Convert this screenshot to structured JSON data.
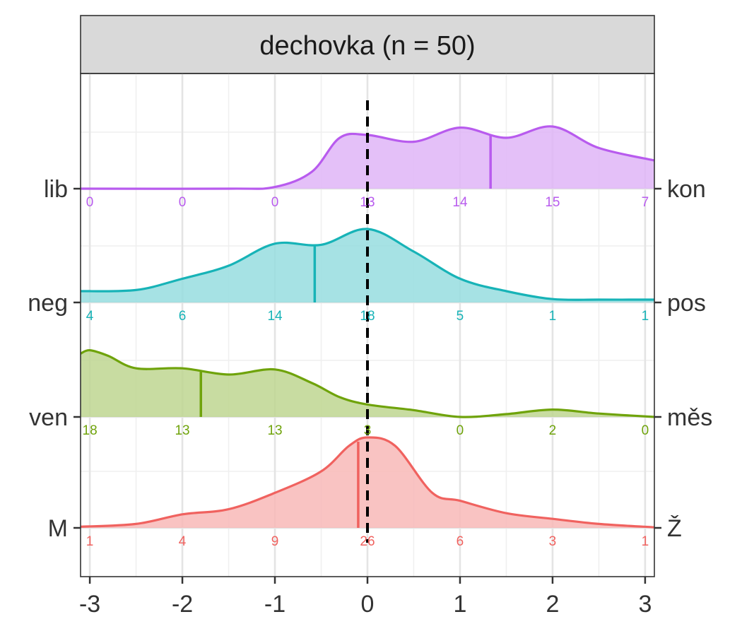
{
  "chart_data": {
    "type": "ridgeline-density",
    "panel_title": "dechovka (n = 50)",
    "xlim": [
      -3.1,
      3.1
    ],
    "x_ticks": [
      -3,
      -2,
      -1,
      0,
      1,
      2,
      3
    ],
    "x_tick_labels": [
      "-3",
      "-2",
      "-1",
      "0",
      "1",
      "2",
      "3"
    ],
    "reference_line_x": 0,
    "grid": true,
    "series": [
      {
        "left_label": "M",
        "right_label": "Ž",
        "color": "#F0625F",
        "mean": -0.1,
        "counts": [
          "1",
          "4",
          "9",
          "26",
          "6",
          "3",
          "1"
        ],
        "curve": [
          [
            -3.1,
            0.02
          ],
          [
            -2.5,
            0.07
          ],
          [
            -2.0,
            0.24
          ],
          [
            -1.5,
            0.33
          ],
          [
            -1.0,
            0.62
          ],
          [
            -0.5,
            1.0
          ],
          [
            -0.2,
            1.45
          ],
          [
            0.0,
            1.6
          ],
          [
            0.3,
            1.45
          ],
          [
            0.7,
            0.62
          ],
          [
            1.0,
            0.48
          ],
          [
            1.5,
            0.26
          ],
          [
            2.0,
            0.16
          ],
          [
            2.5,
            0.07
          ],
          [
            3.1,
            0.01
          ]
        ]
      },
      {
        "left_label": "ven",
        "right_label": "měs",
        "color": "#6FA30B",
        "mean": -1.8,
        "counts": [
          "18",
          "13",
          "13",
          "3",
          "0",
          "2",
          "0"
        ],
        "curve": [
          [
            -3.1,
            1.12
          ],
          [
            -3.0,
            1.18
          ],
          [
            -2.8,
            1.08
          ],
          [
            -2.5,
            0.86
          ],
          [
            -2.0,
            0.86
          ],
          [
            -1.5,
            0.75
          ],
          [
            -1.0,
            0.84
          ],
          [
            -0.6,
            0.6
          ],
          [
            -0.3,
            0.35
          ],
          [
            0.0,
            0.22
          ],
          [
            0.5,
            0.12
          ],
          [
            1.0,
            0.0
          ],
          [
            1.5,
            0.05
          ],
          [
            2.0,
            0.13
          ],
          [
            2.5,
            0.06
          ],
          [
            3.1,
            0.0
          ]
        ]
      },
      {
        "left_label": "neg",
        "right_label": "pos",
        "color": "#17B3B7",
        "mean": -0.57,
        "counts": [
          "4",
          "6",
          "14",
          "18",
          "5",
          "1",
          "1"
        ],
        "curve": [
          [
            -3.1,
            0.2
          ],
          [
            -2.5,
            0.22
          ],
          [
            -2.0,
            0.42
          ],
          [
            -1.5,
            0.65
          ],
          [
            -1.0,
            1.04
          ],
          [
            -0.5,
            1.02
          ],
          [
            0.0,
            1.3
          ],
          [
            0.5,
            0.9
          ],
          [
            1.0,
            0.42
          ],
          [
            1.5,
            0.2
          ],
          [
            2.0,
            0.06
          ],
          [
            2.5,
            0.05
          ],
          [
            3.1,
            0.05
          ]
        ]
      },
      {
        "left_label": "lib",
        "right_label": "kon",
        "color": "#B85BEE",
        "mean": 1.33,
        "counts": [
          "0",
          "0",
          "0",
          "13",
          "14",
          "15",
          "7"
        ],
        "curve": [
          [
            -3.1,
            0.0
          ],
          [
            -1.5,
            0.0
          ],
          [
            -1.0,
            0.03
          ],
          [
            -0.6,
            0.3
          ],
          [
            -0.3,
            0.9
          ],
          [
            0.0,
            0.95
          ],
          [
            0.5,
            0.83
          ],
          [
            1.0,
            1.08
          ],
          [
            1.5,
            0.9
          ],
          [
            2.0,
            1.1
          ],
          [
            2.5,
            0.72
          ],
          [
            3.1,
            0.5
          ]
        ]
      }
    ]
  }
}
